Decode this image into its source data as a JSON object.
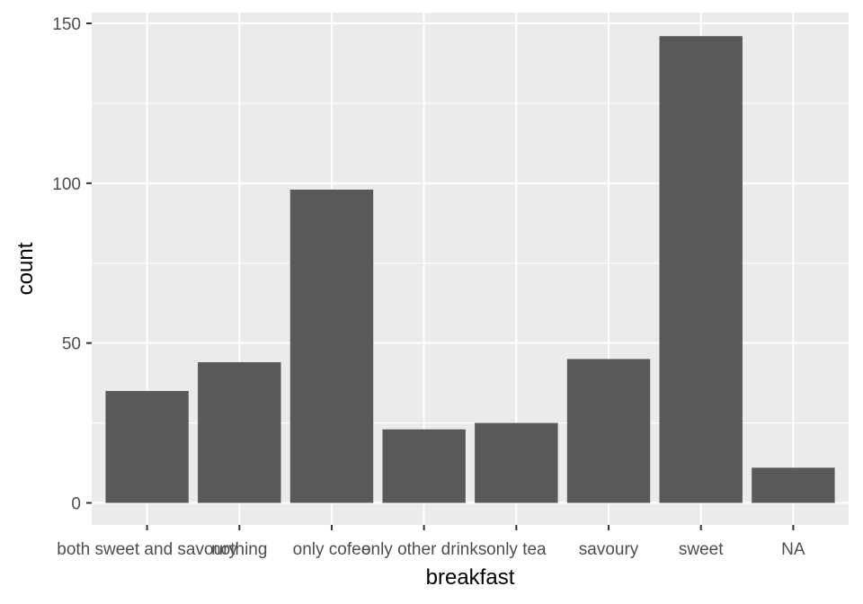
{
  "chart_data": {
    "type": "bar",
    "title": "",
    "xlabel": "breakfast",
    "ylabel": "count",
    "categories": [
      "both sweet and savoury",
      "nothing",
      "only cofee",
      "only other drinks",
      "only tea",
      "savoury",
      "sweet",
      "NA"
    ],
    "values": [
      35,
      44,
      98,
      23,
      25,
      45,
      146,
      11
    ],
    "ylim": [
      0,
      150
    ],
    "yticks": [
      0,
      50,
      100,
      150
    ],
    "grid": true,
    "legend": "none",
    "colors": {
      "panel_background": "#ebebeb",
      "grid_major": "#ffffff",
      "bar_fill": "#595959",
      "tick_text": "#4d4d4d",
      "axis_title": "#000000"
    }
  }
}
